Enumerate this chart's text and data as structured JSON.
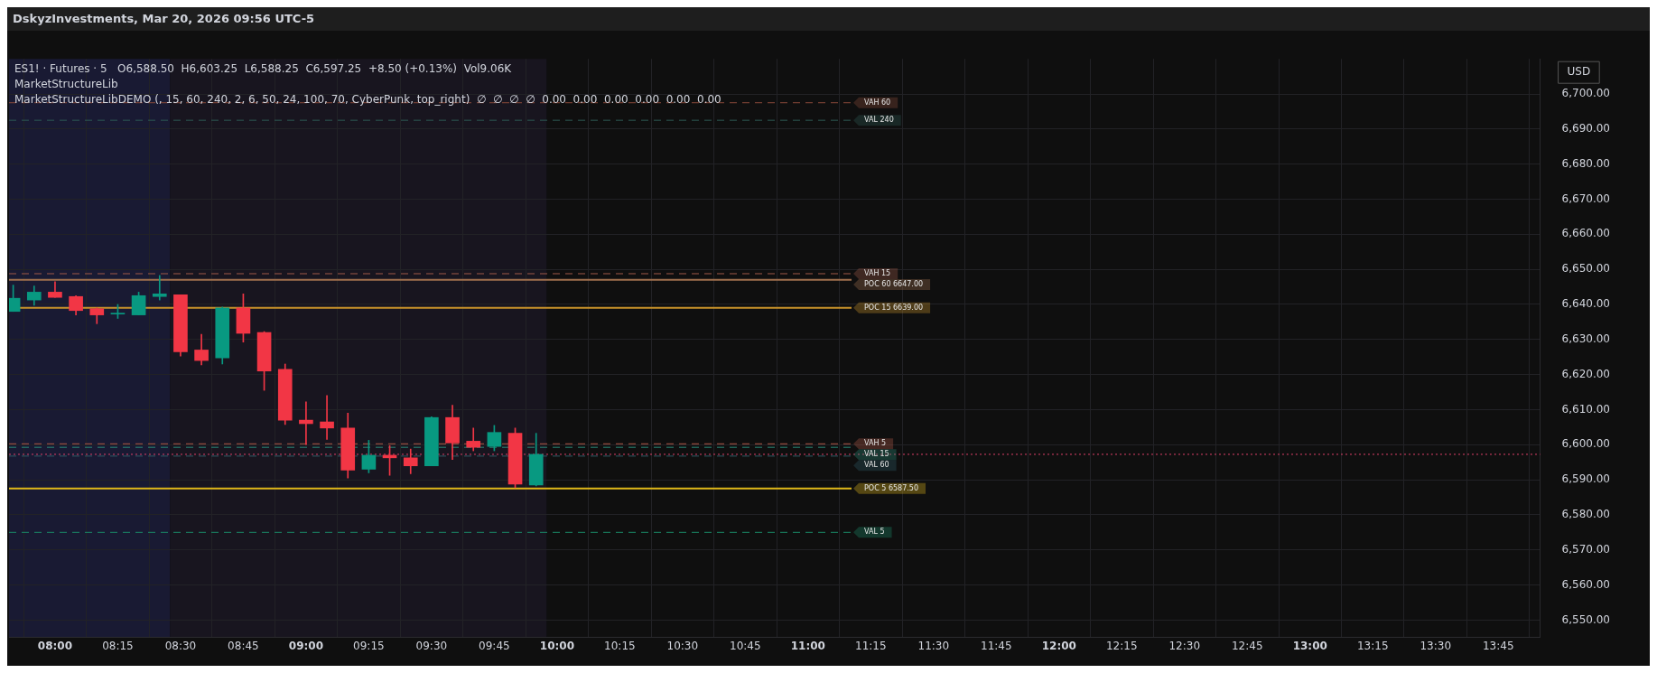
{
  "chart_data": {
    "type": "candlestick",
    "title": "DskyzInvestments, Mar 20, 2026 09:56 UTC-5",
    "ylabel": "USD",
    "annotations": [
      "ES1! · Futures · 5   O6,588.50  H6,603.25  L6,588.25  C6,597.25  +8.50 (+0.13%)  Vol9.06K",
      "MarketStructureLib",
      "MarketStructureLibDEMO (, 15, 60, 240, 2, 6, 50, 24, 100, 70, CyberPunk, top_right)  ∅  ∅  ∅  ∅  0.00  0.00  0.00  0.00  0.00  0.00"
    ],
    "x": [
      7.8333,
      7.9167,
      8,
      8.0833,
      8.1667,
      8.25,
      8.3333,
      8.4167,
      8.5,
      8.5833,
      8.6667,
      8.75,
      8.8333,
      8.9167,
      9,
      9.0833,
      9.1667,
      9.25,
      9.3333,
      9.4167,
      9.5,
      9.5833,
      9.6667,
      9.75,
      9.8333,
      9.9167
    ],
    "ohlc": [
      [
        6638,
        6645.5,
        6638,
        6641.75
      ],
      [
        6641.25,
        6645.25,
        6639.75,
        6643.5
      ],
      [
        6643.5,
        6646.5,
        6642,
        6642
      ],
      [
        6642.25,
        6642.5,
        6637,
        6638.25
      ],
      [
        6638.75,
        6639,
        6634.5,
        6637
      ],
      [
        6637.25,
        6640,
        6636,
        6637.25
      ],
      [
        6637,
        6643.5,
        6637,
        6642.5
      ],
      [
        6642.25,
        6648.25,
        6641.25,
        6643
      ],
      [
        6642.75,
        6642.75,
        6625.25,
        6626.5
      ],
      [
        6627,
        6631.5,
        6622.75,
        6624
      ],
      [
        6624.75,
        6639.25,
        6623,
        6639
      ],
      [
        6639,
        6643,
        6629.25,
        6631.75
      ],
      [
        6632,
        6632.25,
        6615.5,
        6621
      ],
      [
        6621.5,
        6623,
        6605.75,
        6607
      ],
      [
        6607,
        6612.25,
        6600,
        6606
      ],
      [
        6606.5,
        6614,
        6601.5,
        6604.75
      ],
      [
        6604.75,
        6609,
        6590.5,
        6592.75
      ],
      [
        6593,
        6601.25,
        6592,
        6597
      ],
      [
        6597,
        6599.75,
        6591.25,
        6596.25
      ],
      [
        6596.25,
        6598.75,
        6591.75,
        6594
      ],
      [
        6594,
        6608,
        6594,
        6607.75
      ],
      [
        6607.75,
        6611.25,
        6595.75,
        6600.5
      ],
      [
        6601,
        6604.75,
        6598.25,
        6599.25
      ],
      [
        6599.5,
        6605.5,
        6598.25,
        6603.5
      ],
      [
        6603.25,
        6604.75,
        6587.75,
        6588.75
      ],
      [
        6588.5,
        6603.25,
        6588.25,
        6597.25
      ]
    ],
    "colors": [
      "#089981",
      "#089981",
      "#f23645",
      "#f23645",
      "#f23645",
      "#089981",
      "#089981",
      "#089981",
      "#f23645",
      "#f23645",
      "#089981",
      "#f23645",
      "#f23645",
      "#f23645",
      "#f23645",
      "#f23645",
      "#f23645",
      "#089981",
      "#f23645",
      "#f23645",
      "#089981",
      "#f23645",
      "#f23645",
      "#089981",
      "#f23645",
      "#089981"
    ],
    "xlim": [
      7.8167,
      13.9167
    ],
    "xticks": [
      {
        "value": 8,
        "label": "08:00"
      },
      {
        "value": 8.25,
        "label": "08:15"
      },
      {
        "value": 8.5,
        "label": "08:30"
      },
      {
        "value": 8.75,
        "label": "08:45"
      },
      {
        "value": 9,
        "label": "09:00"
      },
      {
        "value": 9.25,
        "label": "09:15"
      },
      {
        "value": 9.5,
        "label": "09:30"
      },
      {
        "value": 9.75,
        "label": "09:45"
      },
      {
        "value": 10,
        "label": "10:00"
      },
      {
        "value": 10.25,
        "label": "10:15"
      },
      {
        "value": 10.5,
        "label": "10:30"
      },
      {
        "value": 10.75,
        "label": "10:45"
      },
      {
        "value": 11,
        "label": "11:00"
      },
      {
        "value": 11.25,
        "label": "11:15"
      },
      {
        "value": 11.5,
        "label": "11:30"
      },
      {
        "value": 11.75,
        "label": "11:45"
      },
      {
        "value": 12,
        "label": "12:00"
      },
      {
        "value": 12.25,
        "label": "12:15"
      },
      {
        "value": 12.5,
        "label": "12:30"
      },
      {
        "value": 12.75,
        "label": "12:45"
      },
      {
        "value": 13,
        "label": "13:00"
      },
      {
        "value": 13.25,
        "label": "13:15"
      },
      {
        "value": 13.5,
        "label": "13:30"
      },
      {
        "value": 13.75,
        "label": "13:45"
      }
    ],
    "ylim": [
      6545,
      6710
    ],
    "yticks": [
      {
        "value": 6550,
        "label": "6,550.00"
      },
      {
        "value": 6560,
        "label": "6,560.00"
      },
      {
        "value": 6570,
        "label": "6,570.00"
      },
      {
        "value": 6580,
        "label": "6,580.00"
      },
      {
        "value": 6590,
        "label": "6,590.00"
      },
      {
        "value": 6600,
        "label": "6,600.00"
      },
      {
        "value": 6610,
        "label": "6,610.00"
      },
      {
        "value": 6620,
        "label": "6,620.00"
      },
      {
        "value": 6630,
        "label": "6,630.00"
      },
      {
        "value": 6640,
        "label": "6,640.00"
      },
      {
        "value": 6650,
        "label": "6,650.00"
      },
      {
        "value": 6660,
        "label": "6,660.00"
      },
      {
        "value": 6670,
        "label": "6,670.00"
      },
      {
        "value": 6680,
        "label": "6,680.00"
      },
      {
        "value": 6690,
        "label": "6,690.00"
      },
      {
        "value": 6700,
        "label": "6,700.00"
      }
    ],
    "grid": true,
    "bands": [
      {
        "axis": "x",
        "from": 7.8167,
        "to": 8.4583,
        "color": "#191a33"
      },
      {
        "axis": "x",
        "from": 8.4583,
        "to": 9.9583,
        "color": "#18151f"
      }
    ],
    "ref_lines": [
      {
        "axis": "y",
        "value": 6697.5,
        "label": "VAH 60",
        "color": "#8a4a3a",
        "line_style": "dashed"
      },
      {
        "axis": "y",
        "value": 6692.5,
        "label": "VAL 240",
        "color": "#2e5a55",
        "line_style": "dashed"
      },
      {
        "axis": "y",
        "value": 6648.75,
        "label": "VAH 15",
        "color": "#a05a48",
        "line_style": "dashed"
      },
      {
        "axis": "y",
        "value": 6647,
        "label": "POC 60 6647.00",
        "color": "#a0704e",
        "line_style": "solid"
      },
      {
        "axis": "y",
        "value": 6639,
        "label": "POC 15 6639.00",
        "color": "#c8922a",
        "line_style": "solid"
      },
      {
        "axis": "y",
        "value": 6600.25,
        "label": "VAH 5",
        "color": "#b05a48",
        "line_style": "dashed"
      },
      {
        "axis": "y",
        "value": 6599.25,
        "label": "VAL 15",
        "color": "#2a8a78",
        "line_style": "dashed"
      },
      {
        "axis": "y",
        "value": 6597.25,
        "label": null,
        "color": "#e0406a",
        "line_style": "dotted"
      },
      {
        "axis": "y",
        "value": 6596.75,
        "label": "VAL 60",
        "color": "#2e5a66",
        "line_style": "dashed"
      },
      {
        "axis": "y",
        "value": 6587.5,
        "label": "POC 5 6587.50",
        "color": "#e0b81a",
        "line_style": "solid"
      },
      {
        "axis": "y",
        "value": 6575,
        "label": "VAL 5",
        "color": "#1a8a68",
        "line_style": "dashed"
      }
    ]
  }
}
